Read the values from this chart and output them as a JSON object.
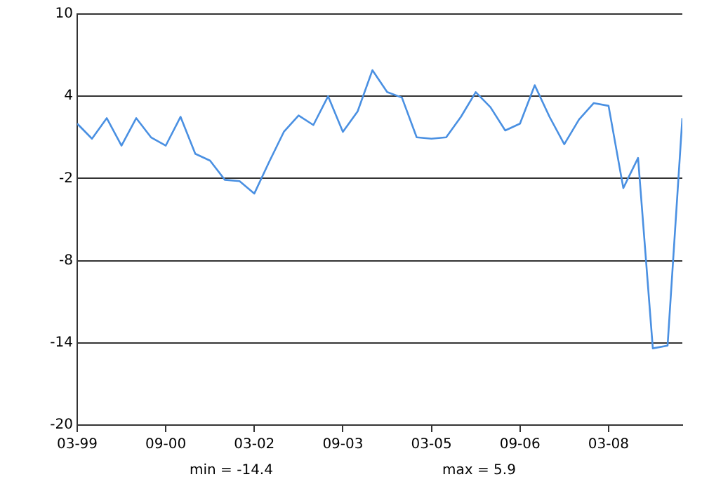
{
  "chart_data": {
    "type": "line",
    "x": [
      "1999-03",
      "1999-06",
      "1999-09",
      "1999-12",
      "2000-03",
      "2000-06",
      "2000-09",
      "2000-12",
      "2001-03",
      "2001-06",
      "2001-09",
      "2001-12",
      "2002-03",
      "2002-06",
      "2002-09",
      "2002-12",
      "2003-03",
      "2003-06",
      "2003-09",
      "2003-12",
      "2004-03",
      "2004-06",
      "2004-09",
      "2004-12",
      "2005-03",
      "2005-06",
      "2005-09",
      "2005-12",
      "2006-03",
      "2006-06",
      "2006-09",
      "2006-12",
      "2007-03",
      "2007-06",
      "2007-09",
      "2007-12",
      "2008-03",
      "2008-06",
      "2008-09",
      "2008-12",
      "2009-03",
      "2009-06"
    ],
    "series": [
      {
        "color": "#4a90e2",
        "values": [
          2.0,
          0.9,
          2.4,
          0.4,
          2.4,
          1.0,
          0.4,
          2.5,
          -0.2,
          -0.7,
          -2.1,
          -2.2,
          -3.1,
          -0.8,
          1.4,
          2.6,
          1.9,
          4.0,
          1.4,
          2.9,
          5.9,
          4.3,
          3.9,
          1.0,
          0.9,
          1.0,
          2.5,
          4.3,
          3.2,
          1.5,
          2.0,
          4.8,
          2.5,
          0.5,
          2.3,
          3.5,
          3.3,
          -2.7,
          -0.5,
          -14.4,
          -14.2,
          2.4
        ]
      }
    ],
    "xlim": [
      "1999-03",
      "2009-06"
    ],
    "xticks": [
      {
        "value": "1999-03",
        "label": "03-99"
      },
      {
        "value": "2000-09",
        "label": "09-00"
      },
      {
        "value": "2002-03",
        "label": "03-02"
      },
      {
        "value": "2003-09",
        "label": "09-03"
      },
      {
        "value": "2005-03",
        "label": "03-05"
      },
      {
        "value": "2006-09",
        "label": "09-06"
      },
      {
        "value": "2008-03",
        "label": "03-08"
      }
    ],
    "ylim": [
      -20,
      10
    ],
    "yticks": [
      -20,
      -14,
      -8,
      -2,
      4,
      10
    ],
    "grid": "y",
    "legend": false,
    "marker": "none",
    "line_style": "solid",
    "annotations": [
      "min = -14.4",
      "max = 5.9"
    ]
  }
}
